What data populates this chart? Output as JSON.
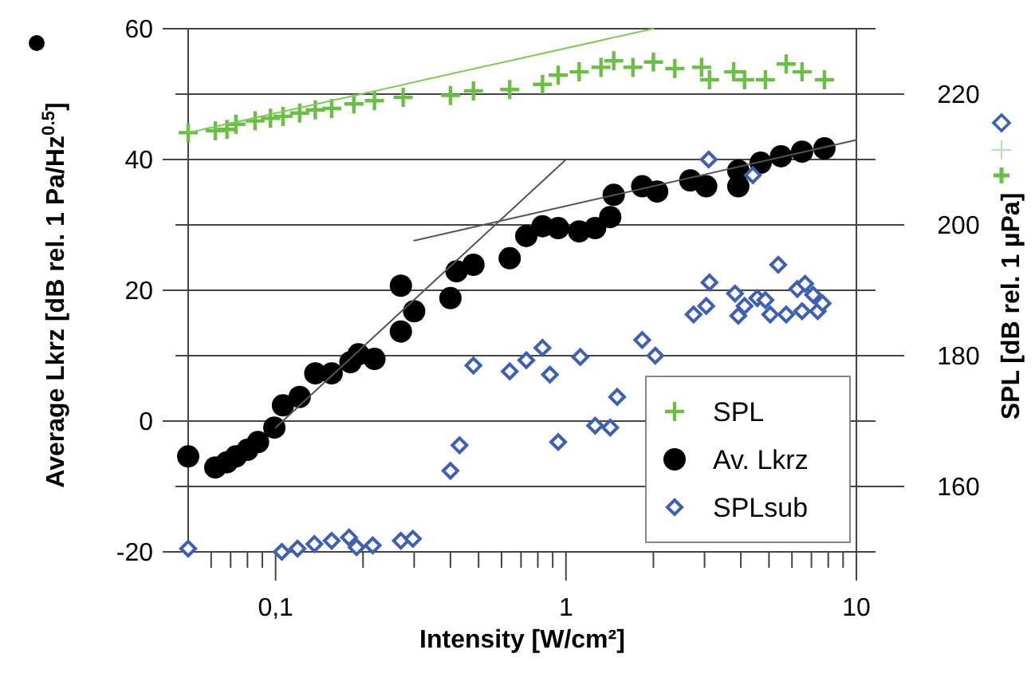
{
  "chart_data": {
    "type": "scatter",
    "xlabel": "Intensity [W/cm²]",
    "ylabel": "Average Lkrz [dB rel. 1 Pa/Hz$^{0.5}$]",
    "y2label": "SPL [dB rel. 1 µPa]",
    "log": "x",
    "grid": "y",
    "legend": "bottom right",
    "xlim": [
      0.05,
      10
    ],
    "xticks": [
      {
        "value": 0.06,
        "label": null
      },
      {
        "value": 0.07,
        "label": null
      },
      {
        "value": 0.08,
        "label": null
      },
      {
        "value": 0.09,
        "label": null
      },
      {
        "value": 0.1,
        "label": "0,1"
      },
      {
        "value": 0.2,
        "label": null
      },
      {
        "value": 0.3,
        "label": null
      },
      {
        "value": 0.4,
        "label": null
      },
      {
        "value": 0.5,
        "label": null
      },
      {
        "value": 0.6,
        "label": null
      },
      {
        "value": 0.7,
        "label": null
      },
      {
        "value": 0.8,
        "label": null
      },
      {
        "value": 0.9,
        "label": null
      },
      1,
      {
        "value": 2,
        "label": null
      },
      {
        "value": 3,
        "label": null
      },
      {
        "value": 4,
        "label": null
      },
      {
        "value": 5,
        "label": null
      },
      {
        "value": 6,
        "label": null
      },
      {
        "value": 7,
        "label": null
      },
      {
        "value": 8,
        "label": null
      },
      {
        "value": 9,
        "label": null
      },
      10
    ],
    "ylim": [
      -20,
      60
    ],
    "yticks": [
      -20,
      {
        "value": -10,
        "label": null
      },
      0,
      {
        "value": 10,
        "label": null
      },
      20,
      {
        "value": 30,
        "label": null
      },
      40,
      {
        "value": 50,
        "label": null
      },
      60
    ],
    "y2lim": [
      150,
      230
    ],
    "y2ticks": [
      {
        "value": 150,
        "label": null
      },
      160,
      {
        "value": 170,
        "label": null
      },
      180,
      {
        "value": 190,
        "label": null
      },
      200,
      {
        "value": 210,
        "label": null
      },
      220,
      {
        "value": 230,
        "label": null
      }
    ],
    "series": [
      {
        "name": "SPL",
        "marker": "cross",
        "axis": "y2",
        "color": "#6abf45",
        "x": [
          0.05,
          0.062,
          0.068,
          0.073,
          0.085,
          0.096,
          0.106,
          0.121,
          0.137,
          0.156,
          0.186,
          0.219,
          0.275,
          0.4,
          0.48,
          0.64,
          0.83,
          0.94,
          1.11,
          1.32,
          1.46,
          1.7,
          2.0,
          2.37,
          2.93,
          3.12,
          3.78,
          4.12,
          4.86,
          5.73,
          6.5,
          7.76
        ],
        "values": [
          214.1,
          214.4,
          214.6,
          215.4,
          215.9,
          216.3,
          216.6,
          217.1,
          217.6,
          217.8,
          218.5,
          219,
          219.5,
          219.8,
          220.5,
          220.7,
          221.5,
          222.9,
          223.4,
          224.1,
          225.1,
          224.1,
          224.9,
          223.9,
          224.1,
          222.2,
          223.4,
          222.2,
          222.2,
          224.6,
          223.4,
          222.2
        ]
      },
      {
        "type": "line",
        "axis": "y2",
        "color": "#7ccc55",
        "line_style": "solid",
        "marker": "none",
        "x": [
          0.05,
          2.0
        ],
        "values": [
          214.1,
          230
        ]
      },
      {
        "name": "Av. Lkrz",
        "marker": "circle",
        "color": "#000000",
        "x": [
          0.05,
          0.062,
          0.068,
          0.073,
          0.08,
          0.087,
          0.099,
          0.106,
          0.121,
          0.137,
          0.156,
          0.181,
          0.193,
          0.219,
          0.27,
          0.3,
          0.27,
          0.4,
          0.42,
          0.48,
          0.64,
          0.73,
          0.83,
          0.94,
          1.11,
          1.26,
          1.42,
          1.46,
          1.83,
          2.06,
          2.68,
          3.04,
          3.92,
          3.92,
          4.68,
          5.5,
          6.5,
          7.76
        ],
        "values": [
          -5.4,
          -7.1,
          -6.3,
          -5.4,
          -4.4,
          -3.2,
          -1,
          2.4,
          3.7,
          7.3,
          7.3,
          9,
          10.2,
          9.5,
          13.7,
          16.8,
          20.7,
          18.8,
          22.9,
          23.9,
          24.9,
          28.3,
          29.8,
          29.5,
          29,
          29.5,
          31.2,
          34.6,
          35.9,
          35.1,
          36.8,
          35.9,
          38.3,
          35.9,
          39.5,
          40.5,
          41.2,
          41.7
        ]
      },
      {
        "type": "line",
        "color": "#555555",
        "line_style": "solid",
        "marker": "none",
        "x": [
          0.1,
          1
        ],
        "values": [
          -1,
          40
        ]
      },
      {
        "type": "line",
        "color": "#555555",
        "line_style": "solid",
        "marker": "none",
        "x": [
          0.3,
          10
        ],
        "values": [
          27.6,
          43
        ]
      },
      {
        "name": "SPLsub",
        "marker": "diamond",
        "axis": "y2",
        "color": "#3f5fb0",
        "x": [
          0.05,
          0.105,
          0.119,
          0.136,
          0.156,
          0.179,
          0.19,
          0.216,
          0.27,
          0.297,
          0.4,
          0.43,
          0.94,
          1.26,
          1.42,
          0.48,
          0.64,
          0.73,
          0.83,
          0.88,
          1.12,
          1.5,
          1.83,
          2.03,
          2.75,
          3.04,
          3.12,
          3.82,
          3.92,
          4.12,
          4.56,
          4.86,
          5.05,
          5.38,
          5.73,
          6.26,
          6.5,
          6.66,
          7.1,
          7.36,
          7.65,
          3.1,
          4.4
        ],
        "values": [
          150.5,
          150,
          150.5,
          151.2,
          151.7,
          152.2,
          150.7,
          151,
          151.7,
          152,
          162.4,
          166.3,
          166.8,
          169.3,
          169,
          178.5,
          177.6,
          179.3,
          181.2,
          177.1,
          179.8,
          173.7,
          182.4,
          180,
          186.3,
          187.6,
          191.2,
          189.5,
          186.1,
          187.6,
          188.8,
          188.5,
          186.3,
          193.9,
          186.3,
          190.2,
          186.8,
          191,
          189.3,
          186.8,
          188,
          210,
          207.6
        ]
      }
    ]
  }
}
